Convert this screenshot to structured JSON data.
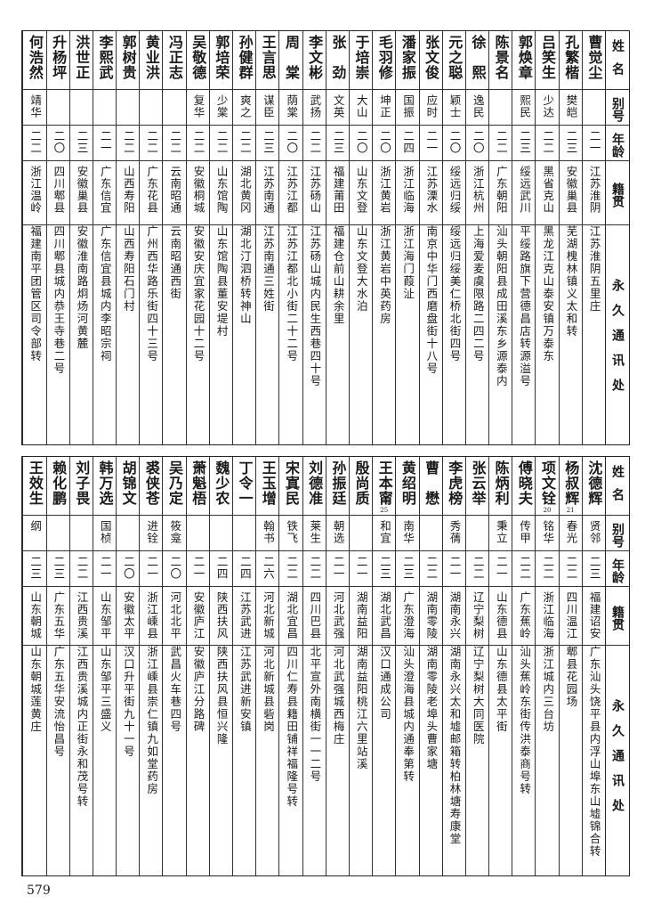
{
  "headers": {
    "name": "姓名",
    "alias": "别号",
    "age": "年龄",
    "hometown": "籍贯",
    "address": "永久通讯处"
  },
  "top": [
    {
      "name": "曹觉尘",
      "alias": "",
      "age": "二一",
      "hometown": "江苏淮阴",
      "address": "江苏淮阴五里庄"
    },
    {
      "name": "孔繁楷",
      "alias": "樊皑",
      "age": "二三",
      "hometown": "安徽巢县",
      "address": "芜湖槐林镇义太和转"
    },
    {
      "name": "吕笑生",
      "alias": "少达",
      "age": "二二",
      "hometown": "黑省克山",
      "address": "黑龙江克山泰安镇万泰东"
    },
    {
      "name": "郭焕章",
      "alias": "熙民",
      "age": "二三",
      "hometown": "绥远武川",
      "address": "平绥路旗下营德昌店转源溢号"
    },
    {
      "name": "陈景名",
      "alias": "",
      "age": "二二",
      "hometown": "广东朝阳",
      "address": "汕头朝阳县成田溪东乡源泰内"
    },
    {
      "name": "徐　熙",
      "alias": "逸民",
      "age": "二〇",
      "hometown": "浙江杭州",
      "address": "上海爱麦虞限路二四二号"
    },
    {
      "name": "元之聪",
      "alias": "颖士",
      "age": "二〇",
      "hometown": "绥远归绥",
      "address": "绥远归绥美仁桥北街四号"
    },
    {
      "name": "张文俊",
      "alias": "应时",
      "age": "二一",
      "hometown": "江苏溧水",
      "address": "南京中华门西磨盘街十八号"
    },
    {
      "name": "潘家振",
      "alias": "国振",
      "age": "二四",
      "hometown": "浙江临海",
      "address": "浙江海门葭沚"
    },
    {
      "name": "毛羽修",
      "alias": "坤正",
      "age": "二〇",
      "hometown": "浙江黄岩",
      "address": "浙江黄岩中英药房"
    },
    {
      "name": "于培崇",
      "alias": "大山",
      "age": "二〇",
      "hometown": "山东文登",
      "address": "山东文登大水泊"
    },
    {
      "name": "张　劲",
      "alias": "文英",
      "age": "二三",
      "hometown": "福建莆田",
      "address": "福建仓前山耕余里"
    },
    {
      "name": "李文彬",
      "alias": "武扬",
      "age": "二二",
      "hometown": "江苏砀山",
      "address": "江苏砀山城内民生西巷四十号"
    },
    {
      "name": "周　棠",
      "alias": "荫棠",
      "age": "二〇",
      "hometown": "江苏江都",
      "address": "江苏江都北小街二十二号"
    },
    {
      "name": "王言思",
      "alias": "谋臣",
      "age": "二三",
      "hometown": "江苏南通",
      "address": "江苏南通三姓街"
    },
    {
      "name": "孙健群",
      "alias": "爽之",
      "age": "二二",
      "hometown": "湖北黄冈",
      "address": "湖北汀泗桥转神山"
    },
    {
      "name": "郭培荣",
      "alias": "少棠",
      "age": "二二",
      "hometown": "山东馆陶",
      "address": "山东馆陶县董安堤村"
    },
    {
      "name": "吴敬德",
      "alias": "复华",
      "age": "二二",
      "hometown": "安徽桐城",
      "address": "安徽安庆宜家花园十二号"
    },
    {
      "name": "冯正志",
      "alias": "",
      "age": "二二",
      "hometown": "云南昭通",
      "address": "云南昭通西街"
    },
    {
      "name": "黄业洪",
      "alias": "",
      "age": "二二",
      "hometown": "广东花县",
      "address": "广州西华路乐街四十三号"
    },
    {
      "name": "郭树贵",
      "alias": "",
      "age": "二二",
      "hometown": "山西寿阳",
      "address": "山西寿阳石门村"
    },
    {
      "name": "李熙武",
      "alias": "",
      "age": "二一",
      "hometown": "广东信宜",
      "address": "广东信宜县城内李昭宗祠"
    },
    {
      "name": "洪世正",
      "alias": "",
      "age": "二三",
      "hometown": "安徽巢县",
      "address": "安徽淮南路炯炀河黄麓"
    },
    {
      "name": "升杨坪",
      "alias": "",
      "age": "二〇",
      "hometown": "四川郫县",
      "address": "四川郫县城内恭王寺巷二号"
    },
    {
      "name": "何浩然",
      "alias": "靖华",
      "age": "二二",
      "hometown": "浙江温岭",
      "address": "福建南平团管区司令部转"
    }
  ],
  "bottom": [
    {
      "name": "沈德辉",
      "alias": "贤邻",
      "age": "二三",
      "hometown": "福建诏安",
      "address": "广东汕头饶平县内浮山埠东山墟锦合转"
    },
    {
      "name": "杨叔辉",
      "note": "21",
      "alias": "春光",
      "age": "二二",
      "hometown": "四川温江",
      "address": "郫县花园场"
    },
    {
      "name": "项文铨",
      "note": "20",
      "alias": "铭华",
      "age": "二二",
      "hometown": "浙江临海",
      "address": "浙江城内三台坊"
    },
    {
      "name": "傅晓夫",
      "alias": "传甲",
      "age": "二二",
      "hometown": "广东蕉岭",
      "address": "汕头蕉岭东街传洪泰商号转"
    },
    {
      "name": "陈炳利",
      "alias": "秉立",
      "age": "二一",
      "hometown": "山东德县",
      "address": "山东德县太平街"
    },
    {
      "name": "张云举",
      "alias": "",
      "age": "二二",
      "hometown": "辽宁梨树",
      "address": "辽宁梨树大同医院"
    },
    {
      "name": "李虎榜",
      "alias": "秀蒨",
      "age": "二一",
      "hometown": "湖南永兴",
      "address": "湖南永兴太和墟邮箱转柏林塘寿康堂"
    },
    {
      "name": "曹　懋",
      "alias": "",
      "age": "二二",
      "hometown": "湖南零陵",
      "address": "湖南零陵老埠头曹家塘"
    },
    {
      "name": "黄绍明",
      "alias": "南华",
      "age": "二三",
      "hometown": "广东澄海",
      "address": "汕头澄海县城内通奉第转"
    },
    {
      "name": "王本甯",
      "note": "25",
      "alias": "和宜",
      "age": "二三",
      "hometown": "湖北武昌",
      "address": "汉口通成公司"
    },
    {
      "name": "殷尚质",
      "alias": "",
      "age": "二一",
      "hometown": "湖南益阳",
      "address": "湖南益阳桃江六里站溪"
    },
    {
      "name": "孙振廷",
      "alias": "朝选",
      "age": "二一",
      "hometown": "河北武强",
      "address": "河北武强城西梅庄"
    },
    {
      "name": "刘德准",
      "alias": "莱生",
      "age": "二二",
      "hometown": "四川巴县",
      "address": "北平宣外南横街一一二号"
    },
    {
      "name": "宋寘民",
      "alias": "铁飞",
      "age": "二二",
      "hometown": "湖北宜昌",
      "address": "四川仁寿县籍田铺祥福隆号转"
    },
    {
      "name": "王玉增",
      "alias": "翰书",
      "age": "二六",
      "hometown": "河北新城",
      "address": "河北新城县砦岗"
    },
    {
      "name": "丁令一",
      "alias": "",
      "age": "二四",
      "hometown": "江苏武进",
      "address": "江苏武进新安镇"
    },
    {
      "name": "魏少农",
      "alias": "",
      "age": "二四",
      "hometown": "陕西扶风",
      "address": "陕西扶风县恒兴隆"
    },
    {
      "name": "萧魁梧",
      "alias": "",
      "age": "二一",
      "hometown": "安徽庐江",
      "address": "安徽庐江分路碑"
    },
    {
      "name": "吴乃定",
      "alias": "筱龛",
      "age": "二〇",
      "hometown": "河北北平",
      "address": "武昌火车巷四号"
    },
    {
      "name": "裘侠苍",
      "alias": "进铨",
      "age": "二一",
      "hometown": "浙江嵊县",
      "address": "浙江嵊县崇仁镇九如堂药房"
    },
    {
      "name": "胡锦文",
      "alias": "",
      "age": "二〇",
      "hometown": "安徽太平",
      "address": "汉口升平街九十一号"
    },
    {
      "name": "韩万选",
      "alias": "国桢",
      "age": "二一",
      "hometown": "山东邹平",
      "address": "山东邹平三盛义"
    },
    {
      "name": "刘子畏",
      "alias": "",
      "age": "二二",
      "hometown": "江西贵溪",
      "address": "江西贵溪城内正街永和茂号转"
    },
    {
      "name": "赖化鹏",
      "alias": "",
      "age": "二三",
      "hometown": "广东五华",
      "address": "广东五华安流怡昌号"
    },
    {
      "name": "王效生",
      "alias": "纲",
      "age": "二三",
      "hometown": "山东朝城",
      "address": "山东朝城莲黄庄"
    }
  ],
  "page_number": "579"
}
